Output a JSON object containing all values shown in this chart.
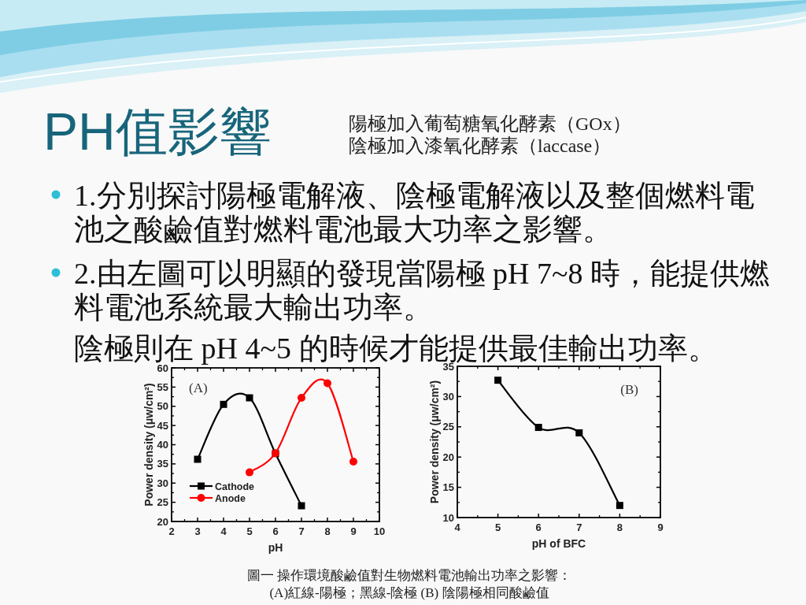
{
  "chart_data": [
    {
      "type": "other",
      "title": "PH值影響",
      "annotations": [
        "陽極加入葡萄糖氧化酵素（GOx）",
        "陰極加入漆氧化酵素（laccase）"
      ]
    },
    {
      "type": "other",
      "annotations": [
        "1.分別探討陽極電解液、陰極電解液以及整個燃料電池之酸鹼值對燃料電池最大功率之影響。",
        "2.由左圖可以明顯的發現當陽極 pH 7~8 時，能提供燃料電池系統最大輸出功率。"
      ]
    },
    {
      "type": "other",
      "annotations": [
        "陰極則在 pH 4~5 的時候才能提供最佳輸出功率。"
      ]
    },
    {
      "type": "line",
      "xlabel": "pH",
      "ylabel": "Power density (μw/cm²)",
      "xlim": [
        2,
        10
      ],
      "xticks": [
        2,
        3,
        4,
        5,
        6,
        7,
        8,
        9,
        10
      ],
      "ylim": [
        20,
        60
      ],
      "yticks": [
        20,
        25,
        30,
        35,
        40,
        45,
        50,
        55,
        60
      ],
      "legend": "bottom left",
      "annotations": [
        "(A)"
      ],
      "series": [
        {
          "name": "Cathode",
          "color": "#000000",
          "marker": "square",
          "x": [
            3,
            4,
            5,
            6,
            7
          ],
          "values": [
            36.2,
            50.5,
            52.2,
            37.7,
            24.1
          ]
        },
        {
          "name": "Anode",
          "color": "#ff0000",
          "marker": "circle",
          "x": [
            5,
            6,
            7,
            8,
            9
          ],
          "values": [
            32.8,
            37.8,
            52.2,
            56.0,
            35.6
          ]
        }
      ]
    },
    {
      "type": "line",
      "xlabel": "pH of BFC",
      "ylabel": "Power density (μw/cm²)",
      "xlim": [
        4,
        9
      ],
      "xticks": [
        4,
        5,
        6,
        7,
        8,
        9
      ],
      "ylim": [
        10,
        35
      ],
      "yticks": [
        10,
        15,
        20,
        25,
        30,
        35
      ],
      "marker": "square",
      "annotations": [
        "(B)"
      ],
      "x": [
        5,
        6,
        7,
        8
      ],
      "series": [
        {
          "color": "#000000",
          "values": [
            32.7,
            24.9,
            24.0,
            12.0
          ]
        }
      ]
    },
    {
      "type": "other",
      "annotations": [
        "圖一 操作環境酸鹼值對生物燃料電池輸出功率之影響：",
        "(A)紅線-陽極；黑線-陰極 (B) 陰陽極相同酸鹼值"
      ]
    }
  ]
}
